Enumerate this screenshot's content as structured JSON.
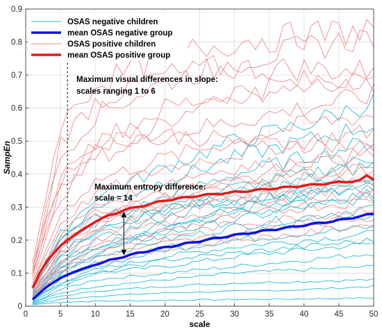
{
  "chart_data": {
    "type": "line",
    "title": "",
    "xlabel": "scale",
    "ylabel": "SampEn",
    "xlim": [
      0,
      50
    ],
    "ylim": [
      0,
      0.9
    ],
    "xticks": [
      0,
      5,
      10,
      15,
      20,
      25,
      30,
      35,
      40,
      45,
      50
    ],
    "yticks": [
      0,
      0.1,
      0.2,
      0.3,
      0.4,
      0.5,
      0.6,
      0.7,
      0.8,
      0.9
    ],
    "grid": true,
    "legend_position": "top-left",
    "legend": [
      {
        "label": "OSAS negative children",
        "color": "#22bcd8",
        "style": "thin"
      },
      {
        "label": "mean OSAS negative group",
        "color": "#1010e8",
        "style": "thick"
      },
      {
        "label": "OSAS positive children",
        "color": "#f08a8a",
        "style": "thin"
      },
      {
        "label": "mean OSAS positive group",
        "color": "#e41a1a",
        "style": "thick"
      }
    ],
    "annotations": [
      {
        "id": "slope",
        "lines": [
          "Maximum visual differences in slope:",
          "scales ranging 1 to 6"
        ],
        "at_x": 6
      },
      {
        "id": "entropy",
        "lines": [
          "Maximum entropy difference:",
          "scale = 14"
        ],
        "at_x": 14
      }
    ],
    "mean_series": [
      {
        "name": "mean OSAS negative group",
        "color": "#1010e8",
        "x": [
          1,
          2,
          3,
          4,
          5,
          6,
          8,
          10,
          12,
          14,
          16,
          20,
          25,
          30,
          35,
          40,
          45,
          48,
          50
        ],
        "y": [
          0.02,
          0.04,
          0.058,
          0.072,
          0.085,
          0.095,
          0.112,
          0.125,
          0.138,
          0.15,
          0.16,
          0.178,
          0.197,
          0.215,
          0.23,
          0.245,
          0.26,
          0.272,
          0.28
        ]
      },
      {
        "name": "mean OSAS positive group",
        "color": "#e41a1a",
        "x": [
          1,
          2,
          3,
          4,
          5,
          6,
          8,
          10,
          12,
          14,
          16,
          18,
          20,
          25,
          30,
          35,
          40,
          45,
          48,
          49,
          50
        ],
        "y": [
          0.055,
          0.1,
          0.135,
          0.16,
          0.183,
          0.2,
          0.23,
          0.255,
          0.275,
          0.29,
          0.3,
          0.31,
          0.32,
          0.335,
          0.345,
          0.355,
          0.365,
          0.375,
          0.38,
          0.395,
          0.385
        ]
      }
    ],
    "individual_series": {
      "OSAS negative children": {
        "color": "#22bcd8",
        "scale_points": [
          1,
          5,
          10,
          20,
          30,
          40,
          50
        ],
        "curves": [
          [
            0.004,
            0.012,
            0.015,
            0.018,
            0.02,
            0.022,
            0.025
          ],
          [
            0.006,
            0.02,
            0.03,
            0.04,
            0.045,
            0.05,
            0.06
          ],
          [
            0.008,
            0.03,
            0.045,
            0.06,
            0.07,
            0.075,
            0.08
          ],
          [
            0.01,
            0.04,
            0.06,
            0.08,
            0.1,
            0.11,
            0.12
          ],
          [
            0.012,
            0.05,
            0.08,
            0.1,
            0.12,
            0.14,
            0.16
          ],
          [
            0.015,
            0.06,
            0.1,
            0.12,
            0.15,
            0.17,
            0.19
          ],
          [
            0.018,
            0.07,
            0.11,
            0.15,
            0.18,
            0.2,
            0.22
          ],
          [
            0.02,
            0.08,
            0.12,
            0.17,
            0.2,
            0.22,
            0.24
          ],
          [
            0.022,
            0.09,
            0.13,
            0.18,
            0.22,
            0.25,
            0.27
          ],
          [
            0.025,
            0.1,
            0.15,
            0.2,
            0.24,
            0.27,
            0.3
          ],
          [
            0.028,
            0.11,
            0.16,
            0.22,
            0.26,
            0.3,
            0.33
          ],
          [
            0.03,
            0.12,
            0.18,
            0.24,
            0.29,
            0.33,
            0.36
          ],
          [
            0.032,
            0.13,
            0.2,
            0.27,
            0.32,
            0.36,
            0.4
          ],
          [
            0.035,
            0.15,
            0.22,
            0.3,
            0.36,
            0.4,
            0.45
          ],
          [
            0.04,
            0.17,
            0.25,
            0.33,
            0.4,
            0.45,
            0.5
          ],
          [
            0.045,
            0.2,
            0.3,
            0.38,
            0.45,
            0.5,
            0.55
          ],
          [
            0.05,
            0.22,
            0.33,
            0.42,
            0.5,
            0.55,
            0.62
          ],
          [
            0.05,
            0.2,
            0.27,
            0.3,
            0.32,
            0.34,
            0.35
          ],
          [
            0.03,
            0.1,
            0.16,
            0.23,
            0.28,
            0.31,
            0.34
          ],
          [
            0.02,
            0.07,
            0.1,
            0.14,
            0.16,
            0.18,
            0.2
          ],
          [
            0.04,
            0.13,
            0.18,
            0.25,
            0.3,
            0.33,
            0.38
          ],
          [
            0.05,
            0.16,
            0.23,
            0.29,
            0.34,
            0.38,
            0.43
          ]
        ]
      },
      "OSAS positive children": {
        "color": "#f08a8a",
        "scale_points": [
          1,
          5,
          10,
          20,
          30,
          40,
          50
        ],
        "curves": [
          [
            0.1,
            0.5,
            0.62,
            0.7,
            0.72,
            0.72,
            0.71
          ],
          [
            0.12,
            0.45,
            0.58,
            0.68,
            0.74,
            0.78,
            0.82
          ],
          [
            0.09,
            0.38,
            0.5,
            0.6,
            0.65,
            0.68,
            0.7
          ],
          [
            0.08,
            0.33,
            0.45,
            0.52,
            0.56,
            0.6,
            0.64
          ],
          [
            0.07,
            0.28,
            0.38,
            0.45,
            0.5,
            0.55,
            0.58
          ],
          [
            0.07,
            0.25,
            0.34,
            0.42,
            0.46,
            0.5,
            0.53
          ],
          [
            0.06,
            0.22,
            0.3,
            0.38,
            0.42,
            0.44,
            0.46
          ],
          [
            0.06,
            0.2,
            0.28,
            0.34,
            0.38,
            0.4,
            0.42
          ],
          [
            0.05,
            0.18,
            0.25,
            0.3,
            0.34,
            0.36,
            0.38
          ],
          [
            0.05,
            0.16,
            0.22,
            0.28,
            0.32,
            0.34,
            0.36
          ],
          [
            0.04,
            0.14,
            0.2,
            0.25,
            0.3,
            0.32,
            0.34
          ],
          [
            0.04,
            0.13,
            0.18,
            0.23,
            0.27,
            0.3,
            0.32
          ],
          [
            0.035,
            0.12,
            0.17,
            0.21,
            0.25,
            0.27,
            0.3
          ],
          [
            0.03,
            0.11,
            0.15,
            0.19,
            0.22,
            0.25,
            0.27
          ],
          [
            0.03,
            0.1,
            0.13,
            0.17,
            0.2,
            0.22,
            0.25
          ],
          [
            0.11,
            0.4,
            0.5,
            0.52,
            0.5,
            0.49,
            0.48
          ],
          [
            0.1,
            0.36,
            0.47,
            0.56,
            0.62,
            0.66,
            0.68
          ],
          [
            0.13,
            0.55,
            0.67,
            0.76,
            0.8,
            0.82,
            0.84
          ],
          [
            0.04,
            0.16,
            0.24,
            0.32,
            0.38,
            0.43,
            0.47
          ],
          [
            0.05,
            0.19,
            0.27,
            0.33,
            0.36,
            0.39,
            0.41
          ]
        ]
      }
    }
  }
}
